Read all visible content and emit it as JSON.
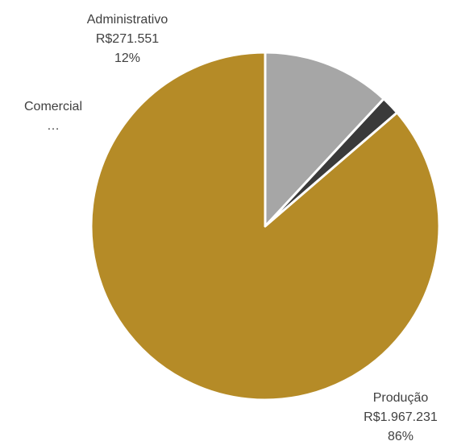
{
  "chart_data": {
    "type": "pie",
    "slices": [
      {
        "name": "Produção",
        "value_label": "R$1.967.231",
        "percent_label": "86%",
        "value": 1967231,
        "color": "#B58B27"
      },
      {
        "name": "Comercial",
        "value_label": "…",
        "percent_label": "",
        "value": 40000,
        "color": "#3A3A3A"
      },
      {
        "name": "Administrativo",
        "value_label": "R$271.551",
        "percent_label": "12%",
        "value": 271551,
        "color": "#A6A6A6"
      }
    ],
    "start_angle_deg": 0,
    "direction": "counterclockwise",
    "slice_border_color": "#FFFFFF"
  }
}
